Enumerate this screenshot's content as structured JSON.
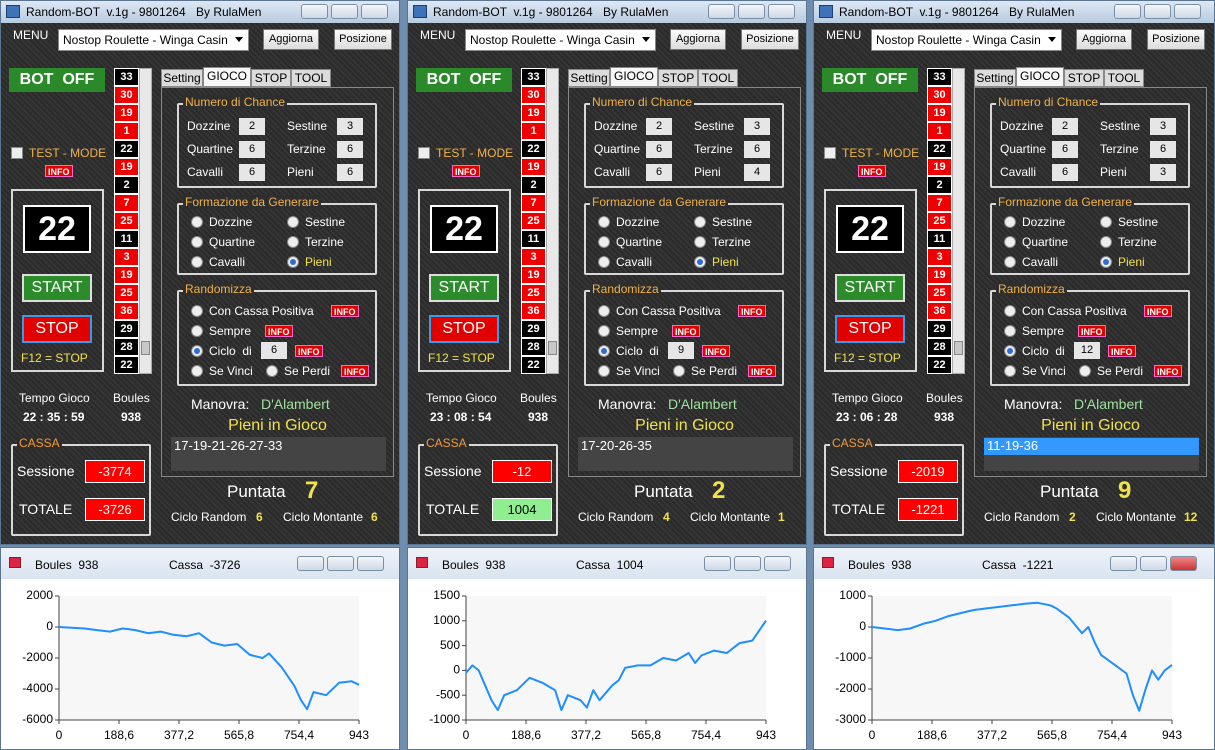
{
  "windows": [
    {
      "title": "Random-BOT  v.1g - 9801264",
      "author": "By RulaMen",
      "menu": "MENU",
      "casino": "Nostop Roulette - Winga Casin",
      "buttons": [
        "Aggiorna",
        "Posizione"
      ],
      "bot_status": "BOT  OFF",
      "test_mode": "TEST - MODE",
      "info": "INFO",
      "last_number": 22,
      "start": "START",
      "stop": "STOP",
      "stop_key": "F12 = STOP",
      "history": [
        33,
        30,
        19,
        1,
        22,
        19,
        2,
        7,
        25,
        11,
        3,
        19,
        25,
        36,
        29,
        28,
        22
      ],
      "history_colors": [
        "#000000",
        "#ee0000",
        "#ee0000",
        "#ee0000",
        "#000000",
        "#ee0000",
        "#000000",
        "#ee0000",
        "#ee0000",
        "#000000",
        "#ee0000",
        "#ee0000",
        "#ee0000",
        "#ee0000",
        "#000000",
        "#000000",
        "#000000"
      ],
      "tabs": [
        "Setting",
        "GIOCO",
        "STOP",
        "TOOL"
      ],
      "chance": {
        "title": "Numero di Chance",
        "labels": [
          "Dozzine",
          "Sestine",
          "Quartine",
          "Terzine",
          "Cavalli",
          "Pieni"
        ],
        "values": [
          2,
          3,
          6,
          6,
          6,
          6
        ]
      },
      "formazione": {
        "title": "Formazione da Generare",
        "options": [
          "Dozzine",
          "Sestine",
          "Quartine",
          "Terzine",
          "Cavalli",
          "Pieni"
        ],
        "selected": 5
      },
      "randomizza": {
        "title": "Randomizza",
        "options": [
          "Con Cassa Positiva",
          "Sempre",
          "Ciclo  di",
          "Se Vinci",
          "Se Perdi"
        ],
        "selected": 2,
        "ciclo": 6
      },
      "tempo_label": "Tempo Gioco",
      "tempo": "22 : 35 : 59",
      "boules_label": "Boules",
      "boules": 938,
      "manovra_label": "Manovra:",
      "manovra": "D'Alambert",
      "pieni_label": "Pieni in Gioco",
      "pieni": "17-19-21-26-27-33",
      "pieni_selected": false,
      "cassa_label": "CASSA",
      "sessione_label": "Sessione",
      "sessione": -3774,
      "totale_label": "TOTALE",
      "totale": -3726,
      "totale_bg": "#ff0000",
      "totale_fg": "#ffffff",
      "puntata_label": "Puntata",
      "puntata": 7,
      "ciclo_random_label": "Ciclo Random",
      "ciclo_random": 6,
      "ciclo_montante_label": "Ciclo Montante",
      "ciclo_montante": 6
    },
    {
      "title": "Random-BOT  v.1g - 9801264",
      "author": "By RulaMen",
      "menu": "MENU",
      "casino": "Nostop Roulette - Winga Casin",
      "buttons": [
        "Aggiorna",
        "Posizione"
      ],
      "bot_status": "BOT  OFF",
      "test_mode": "TEST - MODE",
      "info": "INFO",
      "last_number": 22,
      "start": "START",
      "stop": "STOP",
      "stop_key": "F12 = STOP",
      "history": [
        33,
        30,
        19,
        1,
        22,
        19,
        2,
        7,
        25,
        11,
        3,
        19,
        25,
        36,
        29,
        28,
        22
      ],
      "history_colors": [
        "#000000",
        "#ee0000",
        "#ee0000",
        "#ee0000",
        "#000000",
        "#ee0000",
        "#000000",
        "#ee0000",
        "#ee0000",
        "#000000",
        "#ee0000",
        "#ee0000",
        "#ee0000",
        "#ee0000",
        "#000000",
        "#000000",
        "#000000"
      ],
      "tabs": [
        "Setting",
        "GIOCO",
        "STOP",
        "TOOL"
      ],
      "chance": {
        "title": "Numero di Chance",
        "labels": [
          "Dozzine",
          "Sestine",
          "Quartine",
          "Terzine",
          "Cavalli",
          "Pieni"
        ],
        "values": [
          2,
          3,
          6,
          6,
          6,
          4
        ]
      },
      "formazione": {
        "title": "Formazione da Generare",
        "options": [
          "Dozzine",
          "Sestine",
          "Quartine",
          "Terzine",
          "Cavalli",
          "Pieni"
        ],
        "selected": 5
      },
      "randomizza": {
        "title": "Randomizza",
        "options": [
          "Con Cassa Positiva",
          "Sempre",
          "Ciclo  di",
          "Se Vinci",
          "Se Perdi"
        ],
        "selected": 2,
        "ciclo": 9
      },
      "tempo_label": "Tempo Gioco",
      "tempo": "23 : 08 : 54",
      "boules_label": "Boules",
      "boules": 938,
      "manovra_label": "Manovra:",
      "manovra": "D'Alambert",
      "pieni_label": "Pieni in Gioco",
      "pieni": "17-20-26-35",
      "pieni_selected": false,
      "cassa_label": "CASSA",
      "sessione_label": "Sessione",
      "sessione": -12,
      "totale_label": "TOTALE",
      "totale": 1004,
      "totale_bg": "#90ee90",
      "totale_fg": "#000000",
      "puntata_label": "Puntata",
      "puntata": 2,
      "ciclo_random_label": "Ciclo Random",
      "ciclo_random": 4,
      "ciclo_montante_label": "Ciclo Montante",
      "ciclo_montante": 1
    },
    {
      "title": "Random-BOT  v.1g - 9801264",
      "author": "By RulaMen",
      "menu": "MENU",
      "casino": "Nostop Roulette - Winga Casin",
      "buttons": [
        "Aggiorna",
        "Posizione"
      ],
      "bot_status": "BOT  OFF",
      "test_mode": "TEST - MODE",
      "info": "INFO",
      "last_number": 22,
      "start": "START",
      "stop": "STOP",
      "stop_key": "F12 = STOP",
      "history": [
        33,
        30,
        19,
        1,
        22,
        19,
        2,
        7,
        25,
        11,
        3,
        19,
        25,
        36,
        29,
        28,
        22
      ],
      "history_colors": [
        "#000000",
        "#ee0000",
        "#ee0000",
        "#ee0000",
        "#000000",
        "#ee0000",
        "#000000",
        "#ee0000",
        "#ee0000",
        "#000000",
        "#ee0000",
        "#ee0000",
        "#ee0000",
        "#ee0000",
        "#000000",
        "#000000",
        "#000000"
      ],
      "tabs": [
        "Setting",
        "GIOCO",
        "STOP",
        "TOOL"
      ],
      "chance": {
        "title": "Numero di Chance",
        "labels": [
          "Dozzine",
          "Sestine",
          "Quartine",
          "Terzine",
          "Cavalli",
          "Pieni"
        ],
        "values": [
          2,
          3,
          6,
          6,
          6,
          3
        ]
      },
      "formazione": {
        "title": "Formazione da Generare",
        "options": [
          "Dozzine",
          "Sestine",
          "Quartine",
          "Terzine",
          "Cavalli",
          "Pieni"
        ],
        "selected": 5
      },
      "randomizza": {
        "title": "Randomizza",
        "options": [
          "Con Cassa Positiva",
          "Sempre",
          "Ciclo  di",
          "Se Vinci",
          "Se Perdi"
        ],
        "selected": 2,
        "ciclo": 12
      },
      "tempo_label": "Tempo Gioco",
      "tempo": "23 : 06 : 28",
      "boules_label": "Boules",
      "boules": 938,
      "manovra_label": "Manovra:",
      "manovra": "D'Alambert",
      "pieni_label": "Pieni in Gioco",
      "pieni": "11-19-36",
      "pieni_selected": true,
      "cassa_label": "CASSA",
      "sessione_label": "Sessione",
      "sessione": -2019,
      "totale_label": "TOTALE",
      "totale": -1221,
      "totale_bg": "#ff0000",
      "totale_fg": "#ffffff",
      "puntata_label": "Puntata",
      "puntata": 9,
      "ciclo_random_label": "Ciclo Random",
      "ciclo_random": 2,
      "ciclo_montante_label": "Ciclo Montante",
      "ciclo_montante": 12
    }
  ],
  "chart_data": [
    {
      "type": "line",
      "title": "Boules  938",
      "subtitle": "Cassa  -3726",
      "color": "#1e8fff",
      "x": [
        0,
        40,
        80,
        120,
        160,
        200,
        240,
        280,
        320,
        360,
        400,
        440,
        480,
        520,
        560,
        600,
        640,
        660,
        700,
        740,
        760,
        780,
        800,
        840,
        880,
        920,
        943
      ],
      "values": [
        0,
        -50,
        -100,
        -200,
        -300,
        -100,
        -200,
        -400,
        -300,
        -500,
        -600,
        -400,
        -1000,
        -1200,
        -1100,
        -1800,
        -2000,
        -1700,
        -2600,
        -3800,
        -4700,
        -5300,
        -4200,
        -4400,
        -3600,
        -3500,
        -3726
      ],
      "xlim": [
        0,
        943
      ],
      "xticks": [
        0,
        {
          "value": 188.6,
          "label": "188,6"
        },
        {
          "value": 377.2,
          "label": "377,2"
        },
        {
          "value": 565.8,
          "label": "565,8"
        },
        {
          "value": 754.4,
          "label": "754,4"
        },
        943
      ],
      "ylim": [
        -6000,
        2000
      ],
      "yticks": [
        -6000,
        -4000,
        -2000,
        0,
        2000
      ],
      "grid": false
    },
    {
      "type": "line",
      "title": "Boules  938",
      "subtitle": "Cassa  1004",
      "color": "#1e8fff",
      "x": [
        0,
        20,
        40,
        60,
        80,
        100,
        120,
        160,
        200,
        240,
        280,
        300,
        320,
        360,
        380,
        400,
        420,
        460,
        480,
        500,
        540,
        580,
        620,
        660,
        700,
        720,
        740,
        780,
        820,
        860,
        900,
        943
      ],
      "values": [
        -50,
        100,
        0,
        -300,
        -600,
        -800,
        -500,
        -400,
        -150,
        -250,
        -400,
        -800,
        -500,
        -600,
        -750,
        -400,
        -600,
        -300,
        -200,
        50,
        100,
        100,
        250,
        200,
        350,
        150,
        300,
        400,
        350,
        550,
        600,
        1004
      ],
      "xlim": [
        0,
        943
      ],
      "xticks": [
        0,
        {
          "value": 188.6,
          "label": "188,6"
        },
        {
          "value": 377.2,
          "label": "377,2"
        },
        {
          "value": 565.8,
          "label": "565,8"
        },
        {
          "value": 754.4,
          "label": "754,4"
        },
        943
      ],
      "ylim": [
        -1000,
        1500
      ],
      "yticks": [
        -1000,
        -500,
        0,
        500,
        1000,
        1500
      ],
      "grid": false
    },
    {
      "type": "line",
      "title": "Boules  938",
      "subtitle": "Cassa  -1221",
      "color": "#1e8fff",
      "x": [
        0,
        40,
        80,
        120,
        160,
        200,
        240,
        280,
        320,
        360,
        400,
        440,
        480,
        520,
        560,
        580,
        620,
        660,
        680,
        700,
        720,
        760,
        800,
        820,
        840,
        860,
        880,
        900,
        920,
        943
      ],
      "values": [
        0,
        -50,
        -100,
        -50,
        100,
        200,
        350,
        450,
        550,
        600,
        650,
        700,
        750,
        780,
        700,
        600,
        300,
        -200,
        0,
        -500,
        -900,
        -1200,
        -1500,
        -2200,
        -2700,
        -2000,
        -1400,
        -1700,
        -1400,
        -1221
      ],
      "xlim": [
        0,
        943
      ],
      "xticks": [
        0,
        {
          "value": 188.6,
          "label": "188,6"
        },
        {
          "value": 377.2,
          "label": "377,2"
        },
        {
          "value": 565.8,
          "label": "565,8"
        },
        {
          "value": 754.4,
          "label": "754,4"
        },
        943
      ],
      "ylim": [
        -3000,
        1000
      ],
      "yticks": [
        -3000,
        -2000,
        -1000,
        0,
        1000
      ],
      "grid": false
    }
  ]
}
